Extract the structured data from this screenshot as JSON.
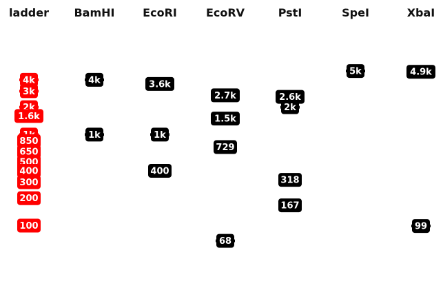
{
  "chart_data": {
    "type": "gel",
    "lanes": [
      {
        "name": "ladder",
        "bands": [
          {
            "label": "4k",
            "bp": 4000
          },
          {
            "label": "3k",
            "bp": 3000
          },
          {
            "label": "2k",
            "bp": 2000
          },
          {
            "label": "1.6k",
            "bp": 1600
          },
          {
            "label": "1k",
            "bp": 1000
          },
          {
            "label": "850",
            "bp": 850
          },
          {
            "label": "650",
            "bp": 650
          },
          {
            "label": "500",
            "bp": 500
          },
          {
            "label": "400",
            "bp": 400
          },
          {
            "label": "300",
            "bp": 300
          },
          {
            "label": "200",
            "bp": 200
          },
          {
            "label": "100",
            "bp": 100
          }
        ]
      },
      {
        "name": "BamHI",
        "bands": [
          {
            "label": "4k",
            "bp": 4000
          },
          {
            "label": "1k",
            "bp": 1000
          }
        ]
      },
      {
        "name": "EcoRI",
        "bands": [
          {
            "label": "3.6k",
            "bp": 3600
          },
          {
            "label": "1k",
            "bp": 1000
          },
          {
            "label": "400",
            "bp": 400
          }
        ]
      },
      {
        "name": "EcoRV",
        "bands": [
          {
            "label": "2.7k",
            "bp": 2700
          },
          {
            "label": "1.5k",
            "bp": 1500
          },
          {
            "label": "729",
            "bp": 729
          },
          {
            "label": "68",
            "bp": 68
          }
        ]
      },
      {
        "name": "PstI",
        "bands": [
          {
            "label": "2.6k",
            "bp": 2600
          },
          {
            "label": "2k",
            "bp": 2000
          },
          {
            "label": "318",
            "bp": 318
          },
          {
            "label": "167",
            "bp": 167
          }
        ]
      },
      {
        "name": "SpeI",
        "bands": [
          {
            "label": "5k",
            "bp": 5000
          }
        ]
      },
      {
        "name": "XbaI",
        "bands": [
          {
            "label": "4.9k",
            "bp": 4900
          },
          {
            "label": "99",
            "bp": 99
          }
        ]
      }
    ],
    "colors": {
      "ladder": "#ff0000",
      "digest": "#000000",
      "label_text": "#ffffff"
    }
  }
}
